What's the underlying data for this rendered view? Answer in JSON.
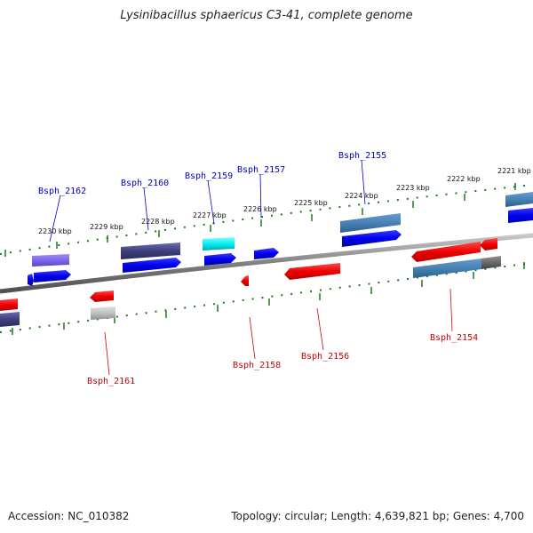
{
  "title": "Lysinibacillus sphaericus C3-41, complete genome",
  "footer": {
    "accession": "Accession: NC_010382",
    "summary": "Topology: circular; Length: 4,639,821 bp; Genes: 4,700"
  },
  "scale_labels": [
    "2230 kbp",
    "2229 kbp",
    "2228 kbp",
    "2227 kbp",
    "2226 kbp",
    "2225 kbp",
    "2224 kbp",
    "2223 kbp",
    "2222 kbp",
    "2221 kbp"
  ],
  "gene_labels": {
    "top": [
      "Bsph_2162",
      "Bsph_2160",
      "Bsph_2159",
      "Bsph_2157",
      "Bsph_2155"
    ],
    "bottom": [
      "Bsph_2161",
      "Bsph_2158",
      "Bsph_2156",
      "Bsph_2154"
    ]
  },
  "colors": {
    "forward_label": "#0000cc",
    "reverse_label": "#cc0000",
    "tick": "#1a7a1a",
    "backbone": "#808080"
  }
}
